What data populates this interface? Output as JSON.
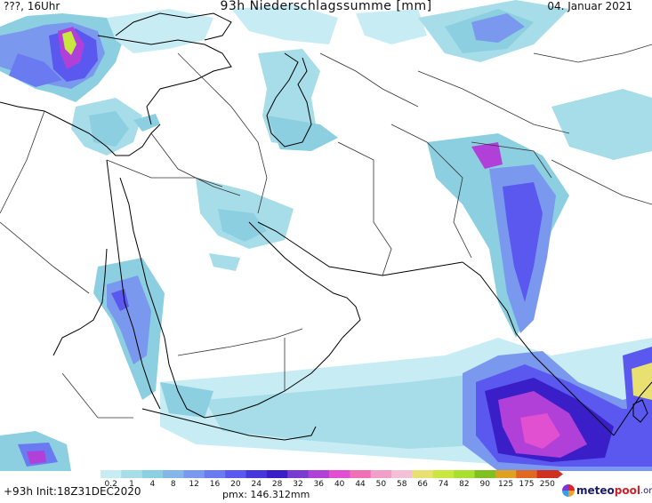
{
  "header": {
    "left": "???, 16Uhr",
    "title": "93h Niederschlagssumme [mm]",
    "date": "04. Januar 2021"
  },
  "legend": {
    "labels": [
      "0.2",
      "1",
      "4",
      "8",
      "12",
      "16",
      "20",
      "24",
      "28",
      "32",
      "36",
      "40",
      "44",
      "50",
      "58",
      "66",
      "74",
      "82",
      "90",
      "125",
      "175",
      "250"
    ],
    "colors": [
      "#c8ecf4",
      "#a6dde8",
      "#8ccfe0",
      "#84b6e8",
      "#7a98ee",
      "#6a7af0",
      "#5a58ee",
      "#4636de",
      "#3a1ec8",
      "#7a3ad0",
      "#b040d8",
      "#e050d0",
      "#f070b8",
      "#f0a0c8",
      "#f4c0d8",
      "#e8e070",
      "#c8e840",
      "#a8e030",
      "#80c020",
      "#e0a020",
      "#e06820",
      "#d03020"
    ]
  },
  "footer": {
    "init": "+93h Init:18Z31DEC2020",
    "pmx": "pmx: 146.312mm",
    "logo_a": "meteo",
    "logo_b": "pool",
    "logo_c": ".org"
  }
}
